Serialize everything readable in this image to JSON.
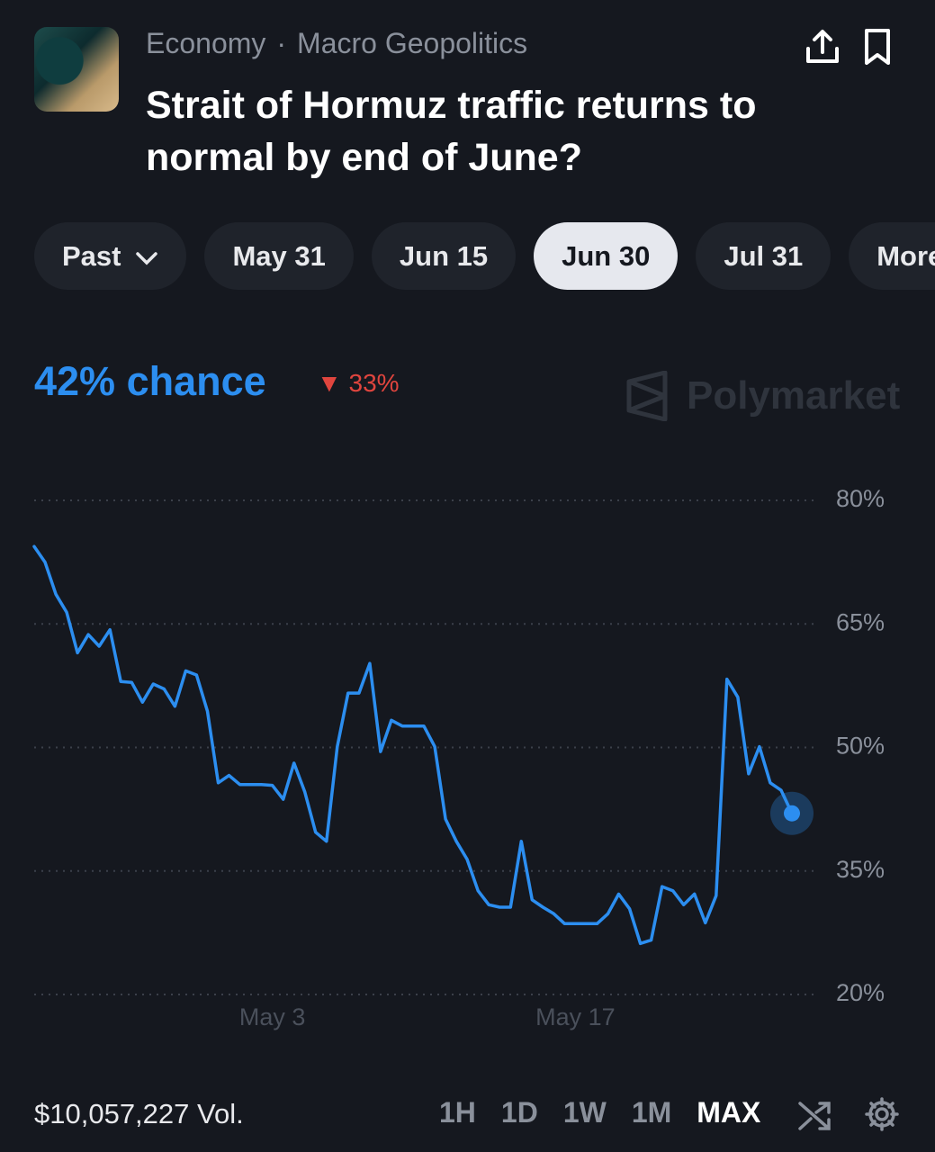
{
  "header": {
    "category": "Economy",
    "separator": "·",
    "subcategory": "Macro Geopolitics",
    "title": "Strait of Hormuz traffic returns to normal by end of June?"
  },
  "tabs": [
    "Past",
    "May 31",
    "Jun 15",
    "Jun 30",
    "Jul 31",
    "More"
  ],
  "active_tab": "Jun 30",
  "headline": "42% chance",
  "change": "33%",
  "brand": "Polymarket",
  "chart_data": {
    "type": "line",
    "color": "#2c8ef0",
    "grid": true,
    "categories": [
      null,
      null,
      null,
      null,
      null,
      null,
      null,
      null,
      null,
      null,
      null,
      null,
      null,
      null,
      null,
      null,
      null,
      null,
      null,
      null,
      null,
      null,
      "May 3",
      null,
      null,
      null,
      null,
      null,
      null,
      null,
      null,
      null,
      null,
      null,
      null,
      null,
      null,
      null,
      null,
      null,
      null,
      null,
      null,
      null,
      null,
      null,
      null,
      null,
      null,
      null,
      "May 17",
      null,
      null,
      null,
      null,
      null,
      null,
      null,
      null,
      null,
      null,
      null,
      null,
      null,
      null,
      null,
      null,
      null,
      null,
      null,
      null
    ],
    "values": [
      74.4,
      72.5,
      68.6,
      66.4,
      61.5,
      63.7,
      62.3,
      64.3,
      58.0,
      57.9,
      55.5,
      57.7,
      57.1,
      55.0,
      59.3,
      58.8,
      54.4,
      45.7,
      46.6,
      45.5,
      45.5,
      45.5,
      45.4,
      43.7,
      48.1,
      44.6,
      39.7,
      38.6,
      50.1,
      56.6,
      56.6,
      60.2,
      49.5,
      53.3,
      52.6,
      52.6,
      52.6,
      50.1,
      41.3,
      38.6,
      36.4,
      32.6,
      30.9,
      30.6,
      30.6,
      38.6,
      31.5,
      30.6,
      29.8,
      28.6,
      28.6,
      28.6,
      28.6,
      29.8,
      32.2,
      30.4,
      26.2,
      26.6,
      33.1,
      32.6,
      30.9,
      32.2,
      28.7,
      32.0,
      58.3,
      56.1,
      46.8,
      50.1,
      45.7,
      44.8,
      42
    ],
    "ylim": [
      20,
      80
    ],
    "yticks": [
      {
        "value": 20,
        "label": "20%"
      },
      {
        "value": 35,
        "label": "35%"
      },
      {
        "value": 50,
        "label": "50%"
      },
      {
        "value": 65,
        "label": "65%"
      },
      {
        "value": 80,
        "label": "80%"
      }
    ]
  },
  "footer": {
    "volume": "$10,057,227 Vol.",
    "ranges": [
      "1H",
      "1D",
      "1W",
      "1M",
      "MAX"
    ],
    "active_range": "MAX"
  }
}
